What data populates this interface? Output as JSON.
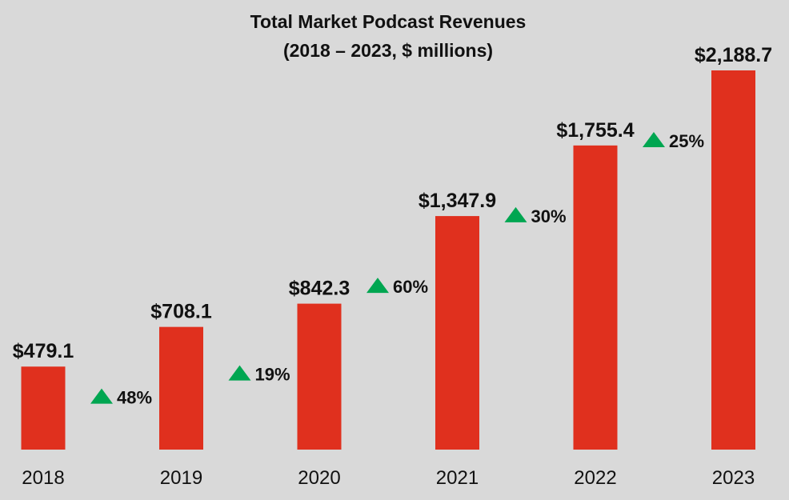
{
  "chart_data": {
    "type": "bar",
    "title": "Total Market Podcast Revenues",
    "subtitle": "(2018 – 2023, $ millions)",
    "categories": [
      "2018",
      "2019",
      "2020",
      "2021",
      "2022",
      "2023"
    ],
    "values": [
      479.1,
      708.1,
      842.3,
      1347.9,
      1755.4,
      2188.7
    ],
    "value_labels": [
      "$479.1",
      "$708.1",
      "$842.3",
      "$1,347.9",
      "$1,755.4",
      "$2,188.7"
    ],
    "growth_labels": [
      "48%",
      "19%",
      "60%",
      "30%",
      "25%"
    ],
    "xlabel": "",
    "ylabel": "",
    "ylim": [
      0,
      2200
    ],
    "grid": false,
    "bar_color": "#e0301e",
    "growth_icon": "up-triangle-icon",
    "growth_icon_color": "#00a651"
  }
}
